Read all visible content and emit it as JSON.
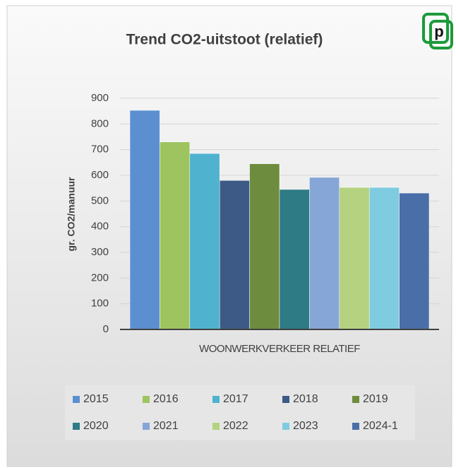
{
  "logo": "p",
  "chart_data": {
    "type": "bar",
    "title": "Trend CO2-uitstoot (relatief)",
    "y_label": "gr. CO2/manuur",
    "categories": [
      "WOONWERKVERKEER RELATIEF"
    ],
    "series": [
      {
        "name": "2015",
        "color": "#5b8fd0",
        "values": [
          853
        ]
      },
      {
        "name": "2016",
        "color": "#9dc45f",
        "values": [
          730
        ]
      },
      {
        "name": "2017",
        "color": "#4fb3cf",
        "values": [
          685
        ]
      },
      {
        "name": "2018",
        "color": "#3c5a85",
        "values": [
          580
        ]
      },
      {
        "name": "2019",
        "color": "#6e8c3d",
        "values": [
          645
        ]
      },
      {
        "name": "2020",
        "color": "#2e7a85",
        "values": [
          545
        ]
      },
      {
        "name": "2021",
        "color": "#85a6d6",
        "values": [
          592
        ]
      },
      {
        "name": "2022",
        "color": "#b4d27f",
        "values": [
          553
        ]
      },
      {
        "name": "2023",
        "color": "#7fcbe0",
        "values": [
          553
        ]
      },
      {
        "name": "2024-1",
        "color": "#4a6fa8",
        "values": [
          531
        ]
      }
    ],
    "ylim": [
      0,
      900
    ],
    "yticks": [
      0,
      100,
      200,
      300,
      400,
      500,
      600,
      700,
      800,
      900
    ],
    "grid": true,
    "legend": "bottom"
  }
}
